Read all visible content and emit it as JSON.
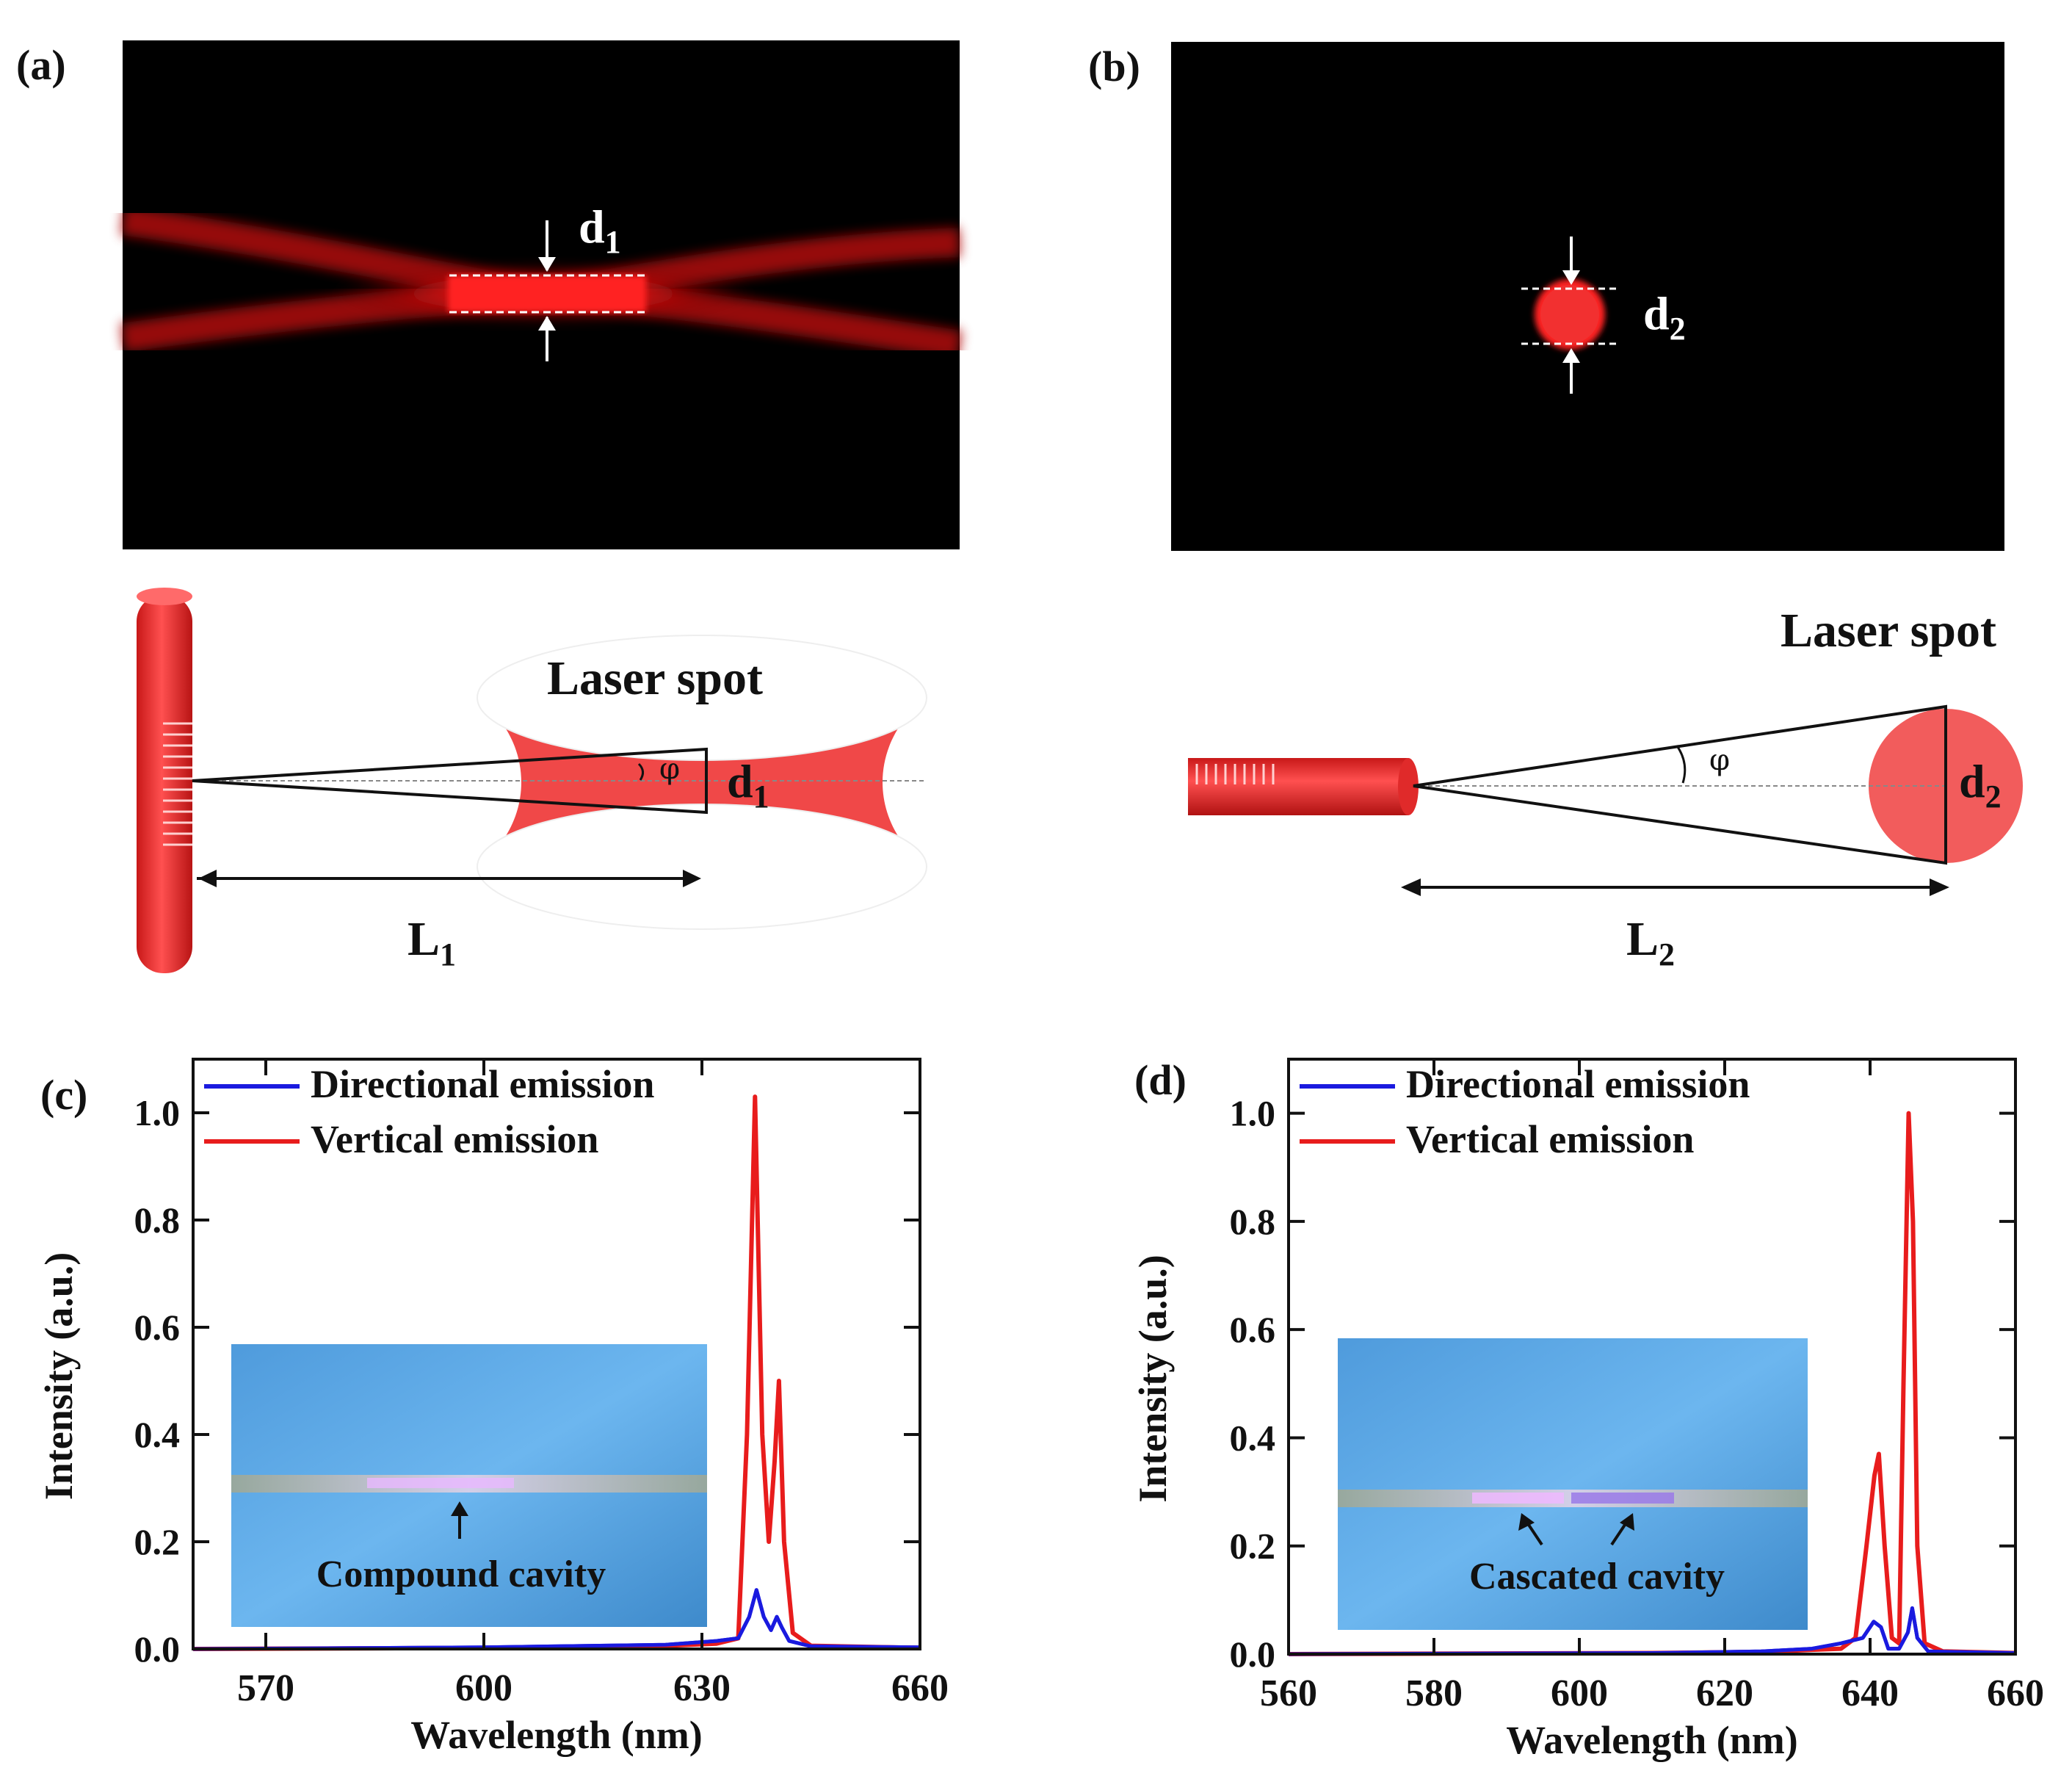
{
  "panels": {
    "a": {
      "label": "(a)",
      "photo_dim_label": "d",
      "photo_dim_sub": "1",
      "schematic": {
        "spot_label": "Laser spot",
        "angle_label": "φ",
        "dim_label": "d",
        "dim_sub": "1",
        "length_label": "L",
        "length_sub": "1"
      }
    },
    "b": {
      "label": "(b)",
      "photo_dim_label": "d",
      "photo_dim_sub": "2",
      "schematic": {
        "spot_label": "Laser spot",
        "angle_label": "φ",
        "dim_label": "d",
        "dim_sub": "2",
        "length_label": "L",
        "length_sub": "2"
      }
    },
    "c": {
      "label": "(c)",
      "inset_label": "Compound cavity"
    },
    "d": {
      "label": "(d)",
      "inset_label": "Cascated cavity"
    }
  },
  "colors": {
    "directional": "#1a1adf",
    "vertical": "#e81c1c",
    "laser": "#f23c3c",
    "inset_bg": "#5aa8e8"
  },
  "chart_data": [
    {
      "id": "c",
      "type": "line",
      "xlabel": "Wavelength (nm)",
      "ylabel": "Intensity (a.u.)",
      "xlim": [
        560,
        660
      ],
      "ylim": [
        0,
        1.1
      ],
      "xticks": [
        570,
        600,
        630,
        660
      ],
      "yticks": [
        0.0,
        0.2,
        0.4,
        0.6,
        0.8,
        1.0
      ],
      "legend_position": "top-left",
      "series": [
        {
          "name": "Directional emission",
          "color": "#1a1adf",
          "points": [
            [
              560,
              0.0
            ],
            [
              600,
              0.003
            ],
            [
              625,
              0.008
            ],
            [
              632,
              0.015
            ],
            [
              635,
              0.02
            ],
            [
              636.5,
              0.06
            ],
            [
              637.5,
              0.11
            ],
            [
              638.5,
              0.06
            ],
            [
              639.5,
              0.035
            ],
            [
              640.3,
              0.06
            ],
            [
              641,
              0.04
            ],
            [
              642,
              0.015
            ],
            [
              645,
              0.005
            ],
            [
              660,
              0.003
            ]
          ]
        },
        {
          "name": "Vertical emission",
          "color": "#e81c1c",
          "points": [
            [
              560,
              0.0
            ],
            [
              600,
              0.002
            ],
            [
              625,
              0.006
            ],
            [
              632,
              0.01
            ],
            [
              635,
              0.02
            ],
            [
              636.2,
              0.4
            ],
            [
              637.3,
              1.03
            ],
            [
              638.3,
              0.4
            ],
            [
              639.2,
              0.2
            ],
            [
              640,
              0.35
            ],
            [
              640.6,
              0.5
            ],
            [
              641.3,
              0.2
            ],
            [
              642.5,
              0.03
            ],
            [
              645,
              0.006
            ],
            [
              660,
              0.002
            ]
          ]
        }
      ]
    },
    {
      "id": "d",
      "type": "line",
      "xlabel": "Wavelength (nm)",
      "ylabel": "Intensity (a.u.)",
      "xlim": [
        560,
        660
      ],
      "ylim": [
        0,
        1.1
      ],
      "xticks": [
        560,
        580,
        600,
        620,
        640,
        660
      ],
      "yticks": [
        0.0,
        0.2,
        0.4,
        0.6,
        0.8,
        1.0
      ],
      "legend_position": "top-left",
      "series": [
        {
          "name": "Directional emission",
          "color": "#1a1adf",
          "points": [
            [
              560,
              0.0
            ],
            [
              610,
              0.002
            ],
            [
              625,
              0.005
            ],
            [
              632,
              0.01
            ],
            [
              636,
              0.02
            ],
            [
              639,
              0.03
            ],
            [
              640.5,
              0.06
            ],
            [
              641.5,
              0.05
            ],
            [
              642.5,
              0.01
            ],
            [
              644,
              0.01
            ],
            [
              645.2,
              0.04
            ],
            [
              645.8,
              0.085
            ],
            [
              646.5,
              0.03
            ],
            [
              648,
              0.005
            ],
            [
              660,
              0.002
            ]
          ]
        },
        {
          "name": "Vertical emission",
          "color": "#e81c1c",
          "points": [
            [
              560,
              0.0
            ],
            [
              610,
              0.002
            ],
            [
              625,
              0.004
            ],
            [
              632,
              0.008
            ],
            [
              636,
              0.01
            ],
            [
              638,
              0.03
            ],
            [
              639.5,
              0.2
            ],
            [
              640.6,
              0.33
            ],
            [
              641.2,
              0.37
            ],
            [
              642,
              0.2
            ],
            [
              643,
              0.03
            ],
            [
              644,
              0.02
            ],
            [
              644.6,
              0.5
            ],
            [
              645.3,
              1.0
            ],
            [
              645.9,
              0.8
            ],
            [
              646.5,
              0.2
            ],
            [
              647.5,
              0.02
            ],
            [
              650,
              0.005
            ],
            [
              660,
              0.002
            ]
          ]
        }
      ]
    }
  ]
}
